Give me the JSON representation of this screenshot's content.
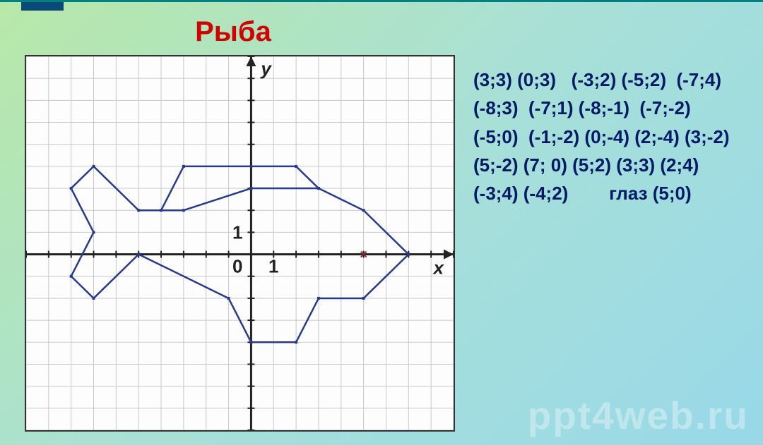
{
  "title": "Рыба",
  "chart": {
    "type": "line-polygon",
    "background_color": "#fdfdfd",
    "grid_color": "#c8c8c8",
    "axis_color": "#222222",
    "line_color": "#2a3a8a",
    "line_width": 2.5,
    "marker_color": "#2a3a8a",
    "marker_size": 4,
    "eye_marker_color": "#8a2a3a",
    "xlim": [
      -10,
      9
    ],
    "ylim": [
      -8,
      9
    ],
    "x_tick_mark": 1,
    "y_tick_mark": 1,
    "axis_label_font": 26,
    "x_axis_label": "x",
    "y_axis_label": "y",
    "origin_label": "0",
    "polygon_points": [
      [
        3,
        3
      ],
      [
        0,
        3
      ],
      [
        -3,
        2
      ],
      [
        -5,
        2
      ],
      [
        -7,
        4
      ],
      [
        -8,
        3
      ],
      [
        -7,
        1
      ],
      [
        -8,
        -1
      ],
      [
        -7,
        -2
      ],
      [
        -5,
        0
      ],
      [
        -1,
        -2
      ],
      [
        0,
        -4
      ],
      [
        2,
        -4
      ],
      [
        3,
        -2
      ],
      [
        5,
        -2
      ],
      [
        7,
        0
      ],
      [
        5,
        2
      ],
      [
        3,
        3
      ],
      [
        2,
        4
      ],
      [
        -3,
        4
      ],
      [
        -4,
        2
      ]
    ],
    "eye_point": [
      5,
      0
    ]
  },
  "coord_text": "(3;3) (0;3)   (-3;2) (-5;2)  (-7;4) (-8;3)  (-7;1) (-8;-1)  (-7;-2) (-5;0)  (-1;-2) (0;-4) (2;-4) (3;-2) (5;-2) (7; 0) (5;2) (3;3) (2;4) (-3;4) (-4;2)        глаз (5;0)",
  "watermark": "ppt4web.ru"
}
